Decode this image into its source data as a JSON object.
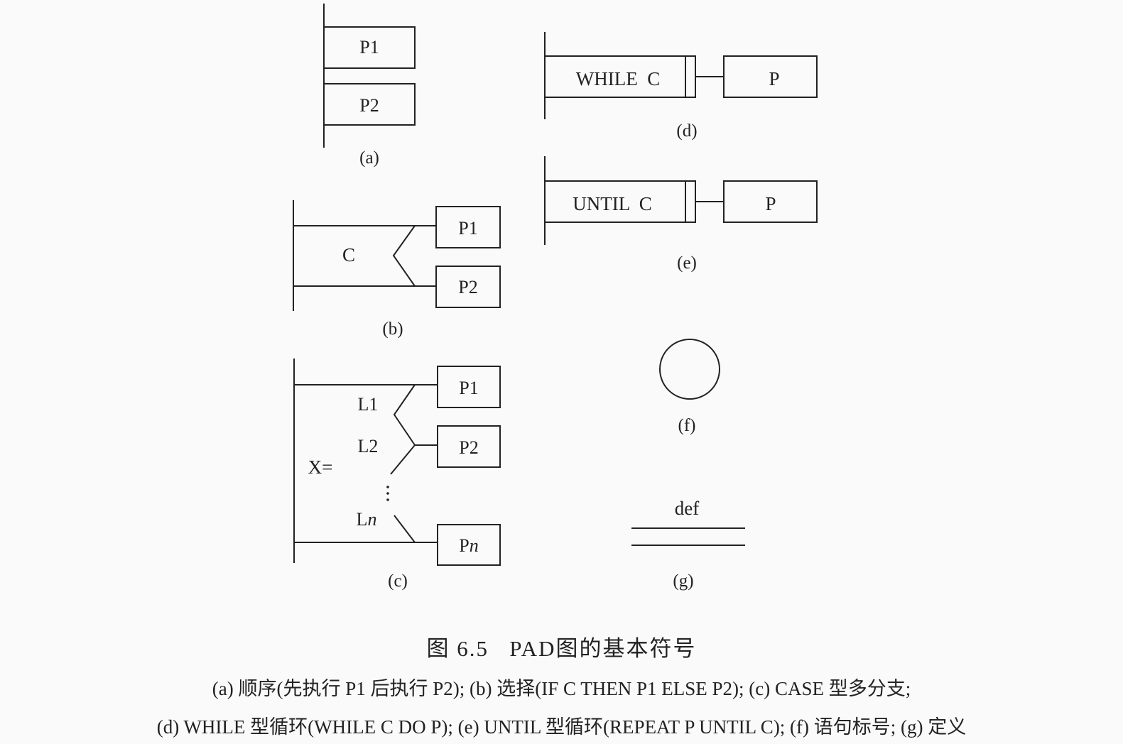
{
  "figure": {
    "title": "图 6.5   PAD图的基本符号",
    "description_line1": "(a) 顺序(先执行 P1 后执行 P2); (b) 选择(IF C THEN P1 ELSE P2); (c) CASE 型多分支;",
    "description_line2": "(d) WHILE 型循环(WHILE C DO P); (e) UNTIL 型循环(REPEAT P UNTIL C); (f) 语句标号; (g) 定义"
  },
  "panels": {
    "a": {
      "caption": "(a)",
      "box1": "P1",
      "box2": "P2"
    },
    "b": {
      "caption": "(b)",
      "condition": "C",
      "box1": "P1",
      "box2": "P2"
    },
    "c": {
      "caption": "(c)",
      "selector": "X=",
      "label1": "L1",
      "label2": "L2",
      "label_n": "L",
      "label_n_sub": "n",
      "box1": "P1",
      "box2": "P2",
      "box_n": "P",
      "box_n_sub": "n"
    },
    "d": {
      "caption": "(d)",
      "condition": "WHILE  C",
      "body": "P"
    },
    "e": {
      "caption": "(e)",
      "condition": "UNTIL  C",
      "body": "P"
    },
    "f": {
      "caption": "(f)"
    },
    "g": {
      "caption": "(g)",
      "label": "def"
    }
  }
}
